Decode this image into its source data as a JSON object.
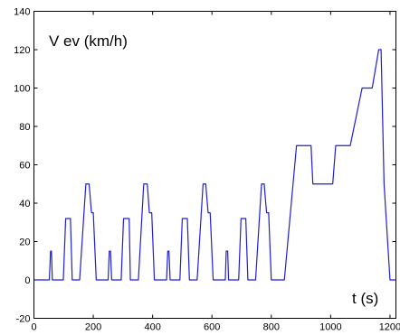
{
  "chart_data": {
    "type": "line",
    "title": "",
    "xlabel": "t (s)",
    "ylabel": "V ev (km/h)",
    "xlim": [
      0,
      1220
    ],
    "ylim": [
      -20,
      140
    ],
    "x_ticks": [
      0,
      200,
      400,
      600,
      800,
      1000,
      1200
    ],
    "y_ticks": [
      -20,
      0,
      20,
      40,
      60,
      80,
      100,
      120,
      140
    ],
    "grid": false,
    "legend": "none",
    "series": [
      {
        "color": "#1f1fd6",
        "points": [
          [
            0,
            0
          ],
          [
            52,
            0
          ],
          [
            56,
            15
          ],
          [
            59,
            15
          ],
          [
            62,
            0
          ],
          [
            99,
            0
          ],
          [
            107,
            32
          ],
          [
            123,
            32
          ],
          [
            129,
            0
          ],
          [
            154,
            0
          ],
          [
            175,
            50
          ],
          [
            186,
            50
          ],
          [
            194,
            35
          ],
          [
            200,
            35
          ],
          [
            210,
            0
          ],
          [
            250,
            0
          ],
          [
            254,
            15
          ],
          [
            258,
            15
          ],
          [
            262,
            0
          ],
          [
            294,
            0
          ],
          [
            302,
            32
          ],
          [
            321,
            32
          ],
          [
            325,
            0
          ],
          [
            352,
            0
          ],
          [
            370,
            50
          ],
          [
            382,
            50
          ],
          [
            389,
            35
          ],
          [
            397,
            35
          ],
          [
            406,
            0
          ],
          [
            447,
            0
          ],
          [
            451,
            15
          ],
          [
            455,
            15
          ],
          [
            459,
            0
          ],
          [
            492,
            0
          ],
          [
            500,
            32
          ],
          [
            517,
            32
          ],
          [
            524,
            0
          ],
          [
            550,
            0
          ],
          [
            570,
            50
          ],
          [
            579,
            50
          ],
          [
            587,
            35
          ],
          [
            594,
            35
          ],
          [
            604,
            0
          ],
          [
            645,
            0
          ],
          [
            648,
            15
          ],
          [
            653,
            15
          ],
          [
            656,
            0
          ],
          [
            690,
            0
          ],
          [
            698,
            32
          ],
          [
            714,
            32
          ],
          [
            721,
            0
          ],
          [
            747,
            0
          ],
          [
            767,
            50
          ],
          [
            776,
            50
          ],
          [
            784,
            35
          ],
          [
            791,
            35
          ],
          [
            800,
            0
          ],
          [
            844,
            0
          ],
          [
            885,
            70
          ],
          [
            934,
            70
          ],
          [
            940,
            50
          ],
          [
            1007,
            50
          ],
          [
            1017,
            70
          ],
          [
            1066,
            70
          ],
          [
            1106,
            100
          ],
          [
            1140,
            100
          ],
          [
            1162,
            120
          ],
          [
            1170,
            120
          ],
          [
            1180,
            50
          ],
          [
            1200,
            0
          ],
          [
            1220,
            0
          ]
        ]
      }
    ]
  }
}
